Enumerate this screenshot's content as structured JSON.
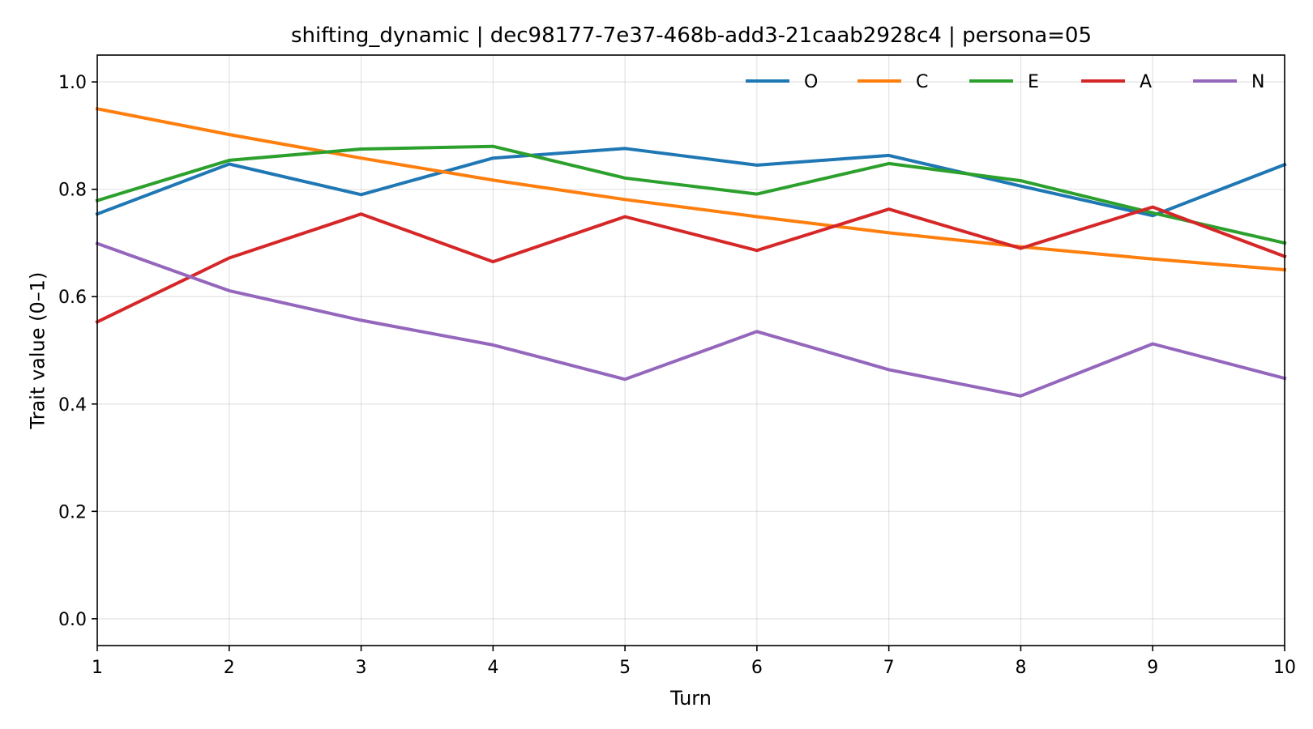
{
  "chart_data": {
    "type": "line",
    "title": "shifting_dynamic | dec98177-7e37-468b-add3-21caab2928c4 | persona=05",
    "xlabel": "Turn",
    "ylabel": "Trait value (0–1)",
    "x": [
      1,
      2,
      3,
      4,
      5,
      6,
      7,
      8,
      9,
      10
    ],
    "xlim": [
      1,
      10
    ],
    "ylim": [
      -0.05,
      1.05
    ],
    "xticks": [
      "1",
      "2",
      "3",
      "4",
      "5",
      "6",
      "7",
      "8",
      "9",
      "10"
    ],
    "yticks": [
      "0.0",
      "0.2",
      "0.4",
      "0.6",
      "0.8",
      "1.0"
    ],
    "grid": true,
    "legend_position": "top-right",
    "series": [
      {
        "name": "O",
        "color": "#1f77b4",
        "values": [
          0.754,
          0.847,
          0.79,
          0.858,
          0.876,
          0.845,
          0.863,
          0.806,
          0.751,
          0.846
        ]
      },
      {
        "name": "C",
        "color": "#ff7f0e",
        "values": [
          0.95,
          0.902,
          0.858,
          0.817,
          0.781,
          0.749,
          0.719,
          0.693,
          0.67,
          0.65
        ]
      },
      {
        "name": "E",
        "color": "#2ca02c",
        "values": [
          0.779,
          0.854,
          0.875,
          0.88,
          0.821,
          0.791,
          0.848,
          0.816,
          0.756,
          0.7
        ]
      },
      {
        "name": "A",
        "color": "#d62728",
        "values": [
          0.553,
          0.672,
          0.754,
          0.665,
          0.749,
          0.686,
          0.763,
          0.69,
          0.767,
          0.675
        ]
      },
      {
        "name": "N",
        "color": "#9467bd",
        "values": [
          0.699,
          0.611,
          0.556,
          0.51,
          0.446,
          0.535,
          0.464,
          0.415,
          0.512,
          0.448
        ]
      }
    ]
  }
}
